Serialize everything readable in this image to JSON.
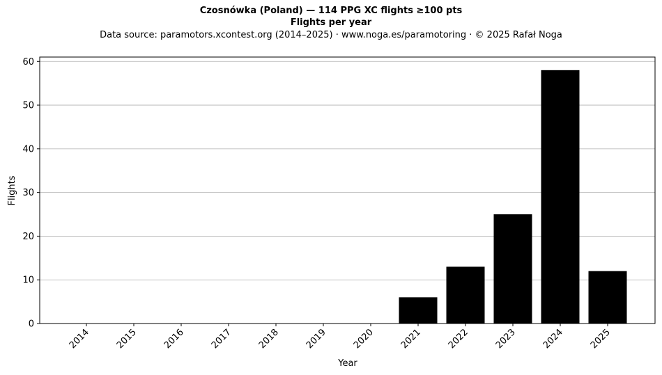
{
  "chart_data": {
    "type": "bar",
    "title": "Czosnówka (Poland)  —  114 PPG XC flights ≥100 pts",
    "subtitle": "Flights per year",
    "source_note": "Data source: paramotors.xcontest.org (2014–2025)  ·  www.noga.es/paramotoring  ·  © 2025 Rafał Noga",
    "xlabel": "Year",
    "ylabel": "Flights",
    "categories": [
      "2014",
      "2015",
      "2016",
      "2017",
      "2018",
      "2019",
      "2020",
      "2021",
      "2022",
      "2023",
      "2024",
      "2025"
    ],
    "values": [
      0,
      0,
      0,
      0,
      0,
      0,
      0,
      6,
      13,
      25,
      58,
      12
    ],
    "ylim": [
      0,
      61
    ],
    "yticks": [
      0,
      10,
      20,
      30,
      40,
      50,
      60
    ],
    "grid": "y",
    "bar_color": "#000000",
    "grid_color": "#b0b0b0"
  }
}
